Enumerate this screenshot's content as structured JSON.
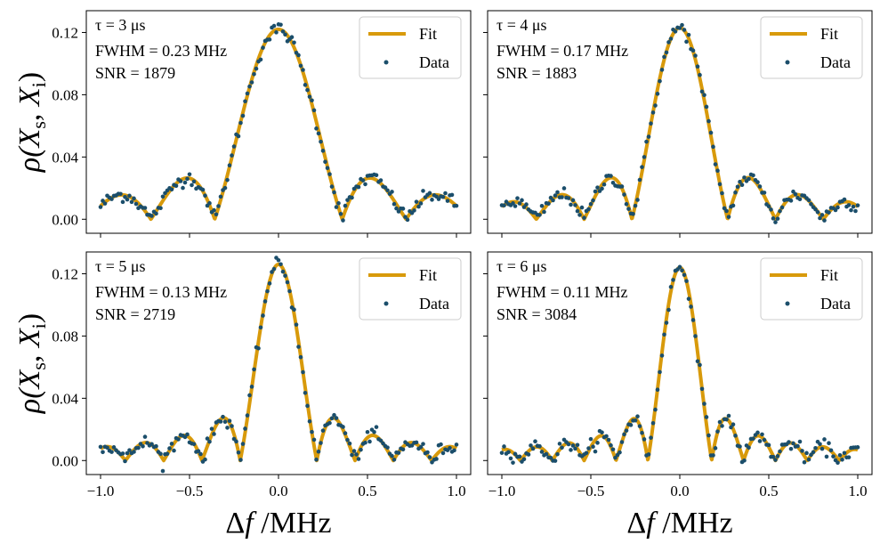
{
  "chart_data": {
    "type": "line+scatter",
    "layout": "2x2 grid, shared x and y axes",
    "colors": {
      "fit": "#D89A0B",
      "data": "#1B4E6B"
    },
    "xlabel": "Δf /MHz",
    "ylabel": "ρ(X_s, X_i)",
    "xlim": [
      -1.08,
      1.08
    ],
    "ylim": [
      -0.009,
      0.134
    ],
    "x_ticks": [
      -1.0,
      -0.5,
      0.0,
      0.5,
      1.0
    ],
    "x_tick_labels": [
      "−1.0",
      "−0.5",
      "0.0",
      "0.5",
      "1.0"
    ],
    "y_ticks": [
      0.0,
      0.04,
      0.08,
      0.12
    ],
    "y_tick_labels": [
      "0.00",
      "0.04",
      "0.08",
      "0.12"
    ],
    "legend": {
      "position": "upper right",
      "entries": [
        "Fit",
        "Data"
      ]
    },
    "panels": [
      {
        "tau_label": "τ = 3 μs",
        "fwhm_text": "FWHM = 0.23 MHz",
        "snr_text": "SNR = 1879",
        "tau_us": 3,
        "fwhm_mhz": 0.23,
        "snr": 1879,
        "peak": 0.122,
        "x_range": [
          -1.0,
          1.0
        ],
        "n_points": 161
      },
      {
        "tau_label": "τ = 4 μs",
        "fwhm_text": "FWHM = 0.17 MHz",
        "snr_text": "SNR = 1883",
        "tau_us": 4,
        "fwhm_mhz": 0.17,
        "snr": 1883,
        "peak": 0.123,
        "x_range": [
          -1.0,
          1.0
        ],
        "n_points": 161
      },
      {
        "tau_label": "τ = 5 μs",
        "fwhm_text": "FWHM = 0.13 MHz",
        "snr_text": "SNR = 2719",
        "tau_us": 5,
        "fwhm_mhz": 0.13,
        "snr": 2719,
        "peak": 0.126,
        "x_range": [
          -1.0,
          1.0
        ],
        "n_points": 161
      },
      {
        "tau_label": "τ = 6 μs",
        "fwhm_text": "FWHM = 0.11 MHz",
        "snr_text": "SNR = 3084",
        "tau_us": 6,
        "fwhm_mhz": 0.11,
        "snr": 3084,
        "peak": 0.124,
        "x_range": [
          -1.0,
          1.0
        ],
        "n_points": 161
      }
    ]
  }
}
